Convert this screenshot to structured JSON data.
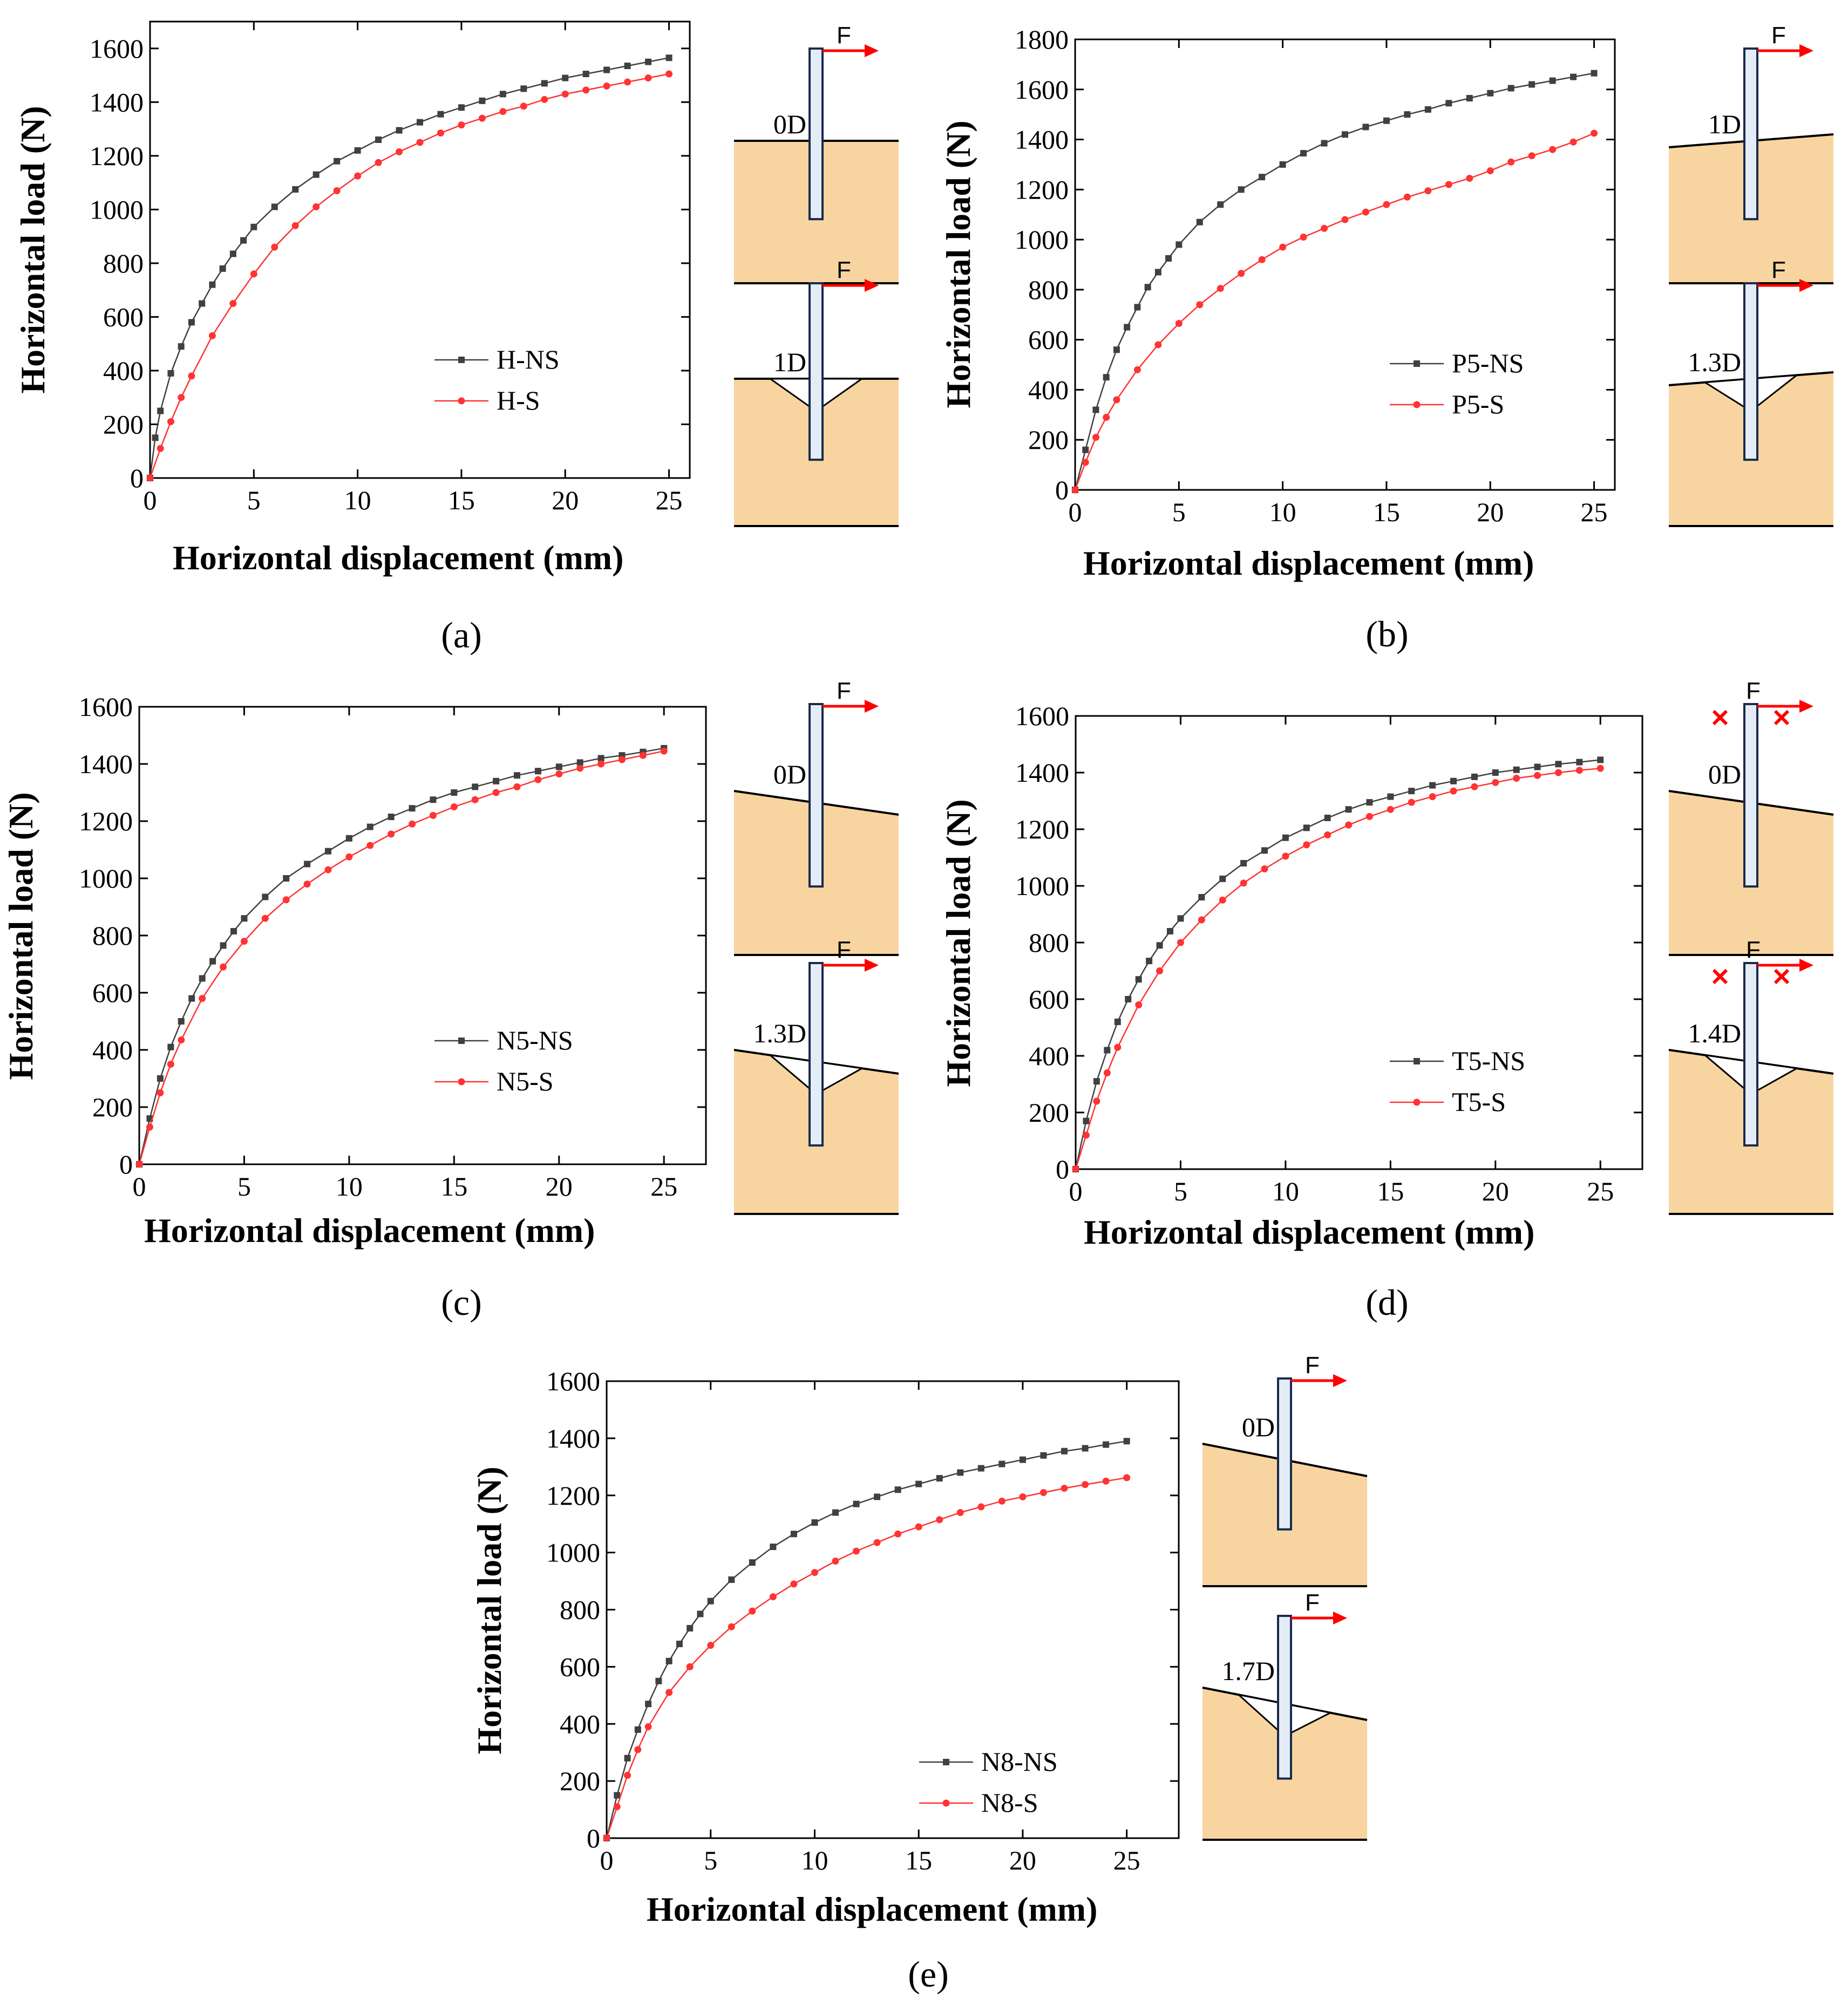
{
  "figure": {
    "panels": [
      {
        "id": "a",
        "label": "(a)",
        "legend": [
          "H-NS",
          "H-S"
        ],
        "schematics": [
          {
            "depth": "0D",
            "force": "F",
            "scour": false,
            "slope": false,
            "restrained": false
          },
          {
            "depth": "1D",
            "force": "F",
            "scour": true,
            "slope": false,
            "restrained": false
          }
        ]
      },
      {
        "id": "b",
        "label": "(b)",
        "legend": [
          "P5-NS",
          "P5-S"
        ],
        "schematics": [
          {
            "depth": "1D",
            "force": "F",
            "scour": false,
            "slope": "up",
            "restrained": false
          },
          {
            "depth": "1.3D",
            "force": "F",
            "scour": true,
            "slope": "up",
            "restrained": false
          }
        ]
      },
      {
        "id": "c",
        "label": "(c)",
        "legend": [
          "N5-NS",
          "N5-S"
        ],
        "schematics": [
          {
            "depth": "0D",
            "force": "F",
            "scour": false,
            "slope": "down",
            "restrained": false
          },
          {
            "depth": "1.3D",
            "force": "F",
            "scour": true,
            "slope": "down",
            "restrained": false
          }
        ]
      },
      {
        "id": "d",
        "label": "(d)",
        "legend": [
          "T5-NS",
          "T5-S"
        ],
        "schematics": [
          {
            "depth": "0D",
            "force": "F",
            "scour": false,
            "slope": "down",
            "restrained": true
          },
          {
            "depth": "1.4D",
            "force": "F",
            "scour": true,
            "slope": "down",
            "restrained": true
          }
        ]
      },
      {
        "id": "e",
        "label": "(e)",
        "legend": [
          "N8-NS",
          "N8-S"
        ],
        "schematics": [
          {
            "depth": "0D",
            "force": "F",
            "scour": false,
            "slope": "down-steep",
            "restrained": false
          },
          {
            "depth": "1.7D",
            "force": "F",
            "scour": true,
            "slope": "down-steep",
            "restrained": false
          }
        ]
      }
    ]
  },
  "chart_data": [
    {
      "type": "line",
      "panel": "a",
      "xlabel": "Horizontal displacement (mm)",
      "ylabel": "Horizontal load (N)",
      "xlim": [
        0,
        26
      ],
      "ylim": [
        0,
        1700
      ],
      "xticks": [
        0,
        5,
        10,
        15,
        20,
        25
      ],
      "yticks": [
        0,
        200,
        400,
        600,
        800,
        1000,
        1200,
        1400,
        1600
      ],
      "series": [
        {
          "name": "H-NS",
          "color": "#404040",
          "marker": "square",
          "x": [
            0,
            0.25,
            0.5,
            1,
            1.5,
            2,
            2.5,
            3,
            3.5,
            4,
            4.5,
            5,
            6,
            7,
            8,
            9,
            10,
            11,
            12,
            13,
            14,
            15,
            16,
            17,
            18,
            19,
            20,
            21,
            22,
            23,
            24,
            25
          ],
          "y": [
            0,
            150,
            250,
            390,
            490,
            580,
            650,
            720,
            780,
            835,
            885,
            935,
            1010,
            1075,
            1130,
            1180,
            1220,
            1260,
            1295,
            1325,
            1355,
            1380,
            1405,
            1430,
            1450,
            1470,
            1490,
            1505,
            1520,
            1535,
            1550,
            1565
          ]
        },
        {
          "name": "H-S",
          "color": "#ff3333",
          "marker": "circle",
          "x": [
            0,
            0.5,
            1,
            1.5,
            2,
            3,
            4,
            5,
            6,
            7,
            8,
            9,
            10,
            11,
            12,
            13,
            14,
            15,
            16,
            17,
            18,
            19,
            20,
            21,
            22,
            23,
            24,
            25
          ],
          "y": [
            0,
            110,
            210,
            300,
            380,
            530,
            650,
            760,
            860,
            940,
            1010,
            1070,
            1125,
            1175,
            1215,
            1250,
            1285,
            1315,
            1340,
            1365,
            1385,
            1410,
            1430,
            1445,
            1460,
            1475,
            1490,
            1505
          ]
        }
      ]
    },
    {
      "type": "line",
      "panel": "b",
      "xlabel": "Horizontal displacement (mm)",
      "ylabel": "Horizontal load (N)",
      "xlim": [
        0,
        26
      ],
      "ylim": [
        0,
        1800
      ],
      "xticks": [
        0,
        5,
        10,
        15,
        20,
        25
      ],
      "yticks": [
        0,
        200,
        400,
        600,
        800,
        1000,
        1200,
        1400,
        1600,
        1800
      ],
      "series": [
        {
          "name": "P5-NS",
          "color": "#404040",
          "marker": "square",
          "x": [
            0,
            0.5,
            1,
            1.5,
            2,
            2.5,
            3,
            3.5,
            4,
            4.5,
            5,
            6,
            7,
            8,
            9,
            10,
            11,
            12,
            13,
            14,
            15,
            16,
            17,
            18,
            19,
            20,
            21,
            22,
            23,
            24,
            25
          ],
          "y": [
            0,
            160,
            320,
            450,
            560,
            650,
            730,
            810,
            870,
            925,
            980,
            1070,
            1140,
            1200,
            1250,
            1300,
            1345,
            1385,
            1420,
            1450,
            1475,
            1500,
            1520,
            1545,
            1565,
            1585,
            1605,
            1620,
            1635,
            1650,
            1665
          ]
        },
        {
          "name": "P5-S",
          "color": "#ff3333",
          "marker": "circle",
          "x": [
            0,
            0.5,
            1,
            1.5,
            2,
            3,
            4,
            5,
            6,
            7,
            8,
            9,
            10,
            11,
            12,
            13,
            14,
            15,
            16,
            17,
            18,
            19,
            20,
            21,
            22,
            23,
            24,
            25
          ],
          "y": [
            0,
            110,
            210,
            290,
            360,
            480,
            580,
            665,
            740,
            805,
            865,
            920,
            970,
            1010,
            1045,
            1080,
            1110,
            1140,
            1170,
            1195,
            1220,
            1245,
            1275,
            1310,
            1335,
            1360,
            1390,
            1425
          ]
        }
      ]
    },
    {
      "type": "line",
      "panel": "c",
      "xlabel": "Horizontal displacement (mm)",
      "ylabel": "Horizontal load (N)",
      "xlim": [
        0,
        27
      ],
      "ylim": [
        0,
        1600
      ],
      "xticks": [
        0,
        5,
        10,
        15,
        20,
        25
      ],
      "yticks": [
        0,
        200,
        400,
        600,
        800,
        1000,
        1200,
        1400,
        1600
      ],
      "series": [
        {
          "name": "N5-NS",
          "color": "#404040",
          "marker": "square",
          "x": [
            0,
            0.5,
            1,
            1.5,
            2,
            2.5,
            3,
            3.5,
            4,
            4.5,
            5,
            6,
            7,
            8,
            9,
            10,
            11,
            12,
            13,
            14,
            15,
            16,
            17,
            18,
            19,
            20,
            21,
            22,
            23,
            24,
            25
          ],
          "y": [
            0,
            160,
            300,
            410,
            500,
            580,
            650,
            710,
            765,
            815,
            860,
            935,
            1000,
            1050,
            1095,
            1140,
            1180,
            1215,
            1245,
            1275,
            1300,
            1320,
            1340,
            1360,
            1375,
            1390,
            1405,
            1420,
            1430,
            1442,
            1455
          ]
        },
        {
          "name": "N5-S",
          "color": "#ff3333",
          "marker": "circle",
          "x": [
            0,
            0.5,
            1,
            1.5,
            2,
            3,
            4,
            5,
            6,
            7,
            8,
            9,
            10,
            11,
            12,
            13,
            14,
            15,
            16,
            17,
            18,
            19,
            20,
            21,
            22,
            23,
            24,
            25
          ],
          "y": [
            0,
            130,
            250,
            350,
            435,
            580,
            690,
            780,
            860,
            925,
            980,
            1030,
            1075,
            1115,
            1155,
            1190,
            1220,
            1250,
            1275,
            1300,
            1320,
            1345,
            1365,
            1385,
            1400,
            1415,
            1430,
            1445
          ]
        }
      ]
    },
    {
      "type": "line",
      "panel": "d",
      "xlabel": "Horizontal displacement (mm)",
      "ylabel": "Horizontal load (N)",
      "xlim": [
        0,
        27
      ],
      "ylim": [
        0,
        1600
      ],
      "xticks": [
        0,
        5,
        10,
        15,
        20,
        25
      ],
      "yticks": [
        0,
        200,
        400,
        600,
        800,
        1000,
        1200,
        1400,
        1600
      ],
      "series": [
        {
          "name": "T5-NS",
          "color": "#404040",
          "marker": "square",
          "x": [
            0,
            0.5,
            1,
            1.5,
            2,
            2.5,
            3,
            3.5,
            4,
            4.5,
            5,
            6,
            7,
            8,
            9,
            10,
            11,
            12,
            13,
            14,
            15,
            16,
            17,
            18,
            19,
            20,
            21,
            22,
            23,
            24,
            25
          ],
          "y": [
            0,
            170,
            310,
            420,
            520,
            600,
            670,
            735,
            790,
            840,
            885,
            960,
            1025,
            1080,
            1125,
            1170,
            1205,
            1240,
            1270,
            1295,
            1315,
            1335,
            1355,
            1370,
            1385,
            1400,
            1410,
            1420,
            1430,
            1437,
            1445
          ]
        },
        {
          "name": "T5-S",
          "color": "#ff3333",
          "marker": "circle",
          "x": [
            0,
            0.5,
            1,
            1.5,
            2,
            3,
            4,
            5,
            6,
            7,
            8,
            9,
            10,
            11,
            12,
            13,
            14,
            15,
            16,
            17,
            18,
            19,
            20,
            21,
            22,
            23,
            24,
            25
          ],
          "y": [
            0,
            120,
            240,
            340,
            430,
            580,
            700,
            800,
            880,
            950,
            1010,
            1060,
            1105,
            1145,
            1180,
            1215,
            1245,
            1270,
            1295,
            1315,
            1335,
            1350,
            1365,
            1380,
            1390,
            1400,
            1408,
            1415
          ]
        }
      ]
    },
    {
      "type": "line",
      "panel": "e",
      "xlabel": "Horizontal displacement (mm)",
      "ylabel": "Horizontal load (N)",
      "xlim": [
        0,
        27.5
      ],
      "ylim": [
        0,
        1600
      ],
      "xticks": [
        0,
        5,
        10,
        15,
        20,
        25
      ],
      "yticks": [
        0,
        200,
        400,
        600,
        800,
        1000,
        1200,
        1400,
        1600
      ],
      "series": [
        {
          "name": "N8-NS",
          "color": "#404040",
          "marker": "square",
          "x": [
            0,
            0.5,
            1,
            1.5,
            2,
            2.5,
            3,
            3.5,
            4,
            4.5,
            5,
            6,
            7,
            8,
            9,
            10,
            11,
            12,
            13,
            14,
            15,
            16,
            17,
            18,
            19,
            20,
            21,
            22,
            23,
            24,
            25
          ],
          "y": [
            0,
            150,
            280,
            380,
            470,
            550,
            620,
            680,
            735,
            785,
            830,
            905,
            965,
            1020,
            1065,
            1105,
            1140,
            1170,
            1195,
            1220,
            1240,
            1260,
            1280,
            1295,
            1310,
            1325,
            1340,
            1355,
            1365,
            1378,
            1390
          ]
        },
        {
          "name": "N8-S",
          "color": "#ff3333",
          "marker": "circle",
          "x": [
            0,
            0.5,
            1,
            1.5,
            2,
            3,
            4,
            5,
            6,
            7,
            8,
            9,
            10,
            11,
            12,
            13,
            14,
            15,
            16,
            17,
            18,
            19,
            20,
            21,
            22,
            23,
            24,
            25
          ],
          "y": [
            0,
            110,
            220,
            310,
            390,
            510,
            600,
            675,
            740,
            795,
            845,
            890,
            930,
            970,
            1005,
            1035,
            1065,
            1090,
            1115,
            1140,
            1160,
            1180,
            1195,
            1210,
            1225,
            1238,
            1250,
            1262
          ]
        }
      ]
    }
  ]
}
